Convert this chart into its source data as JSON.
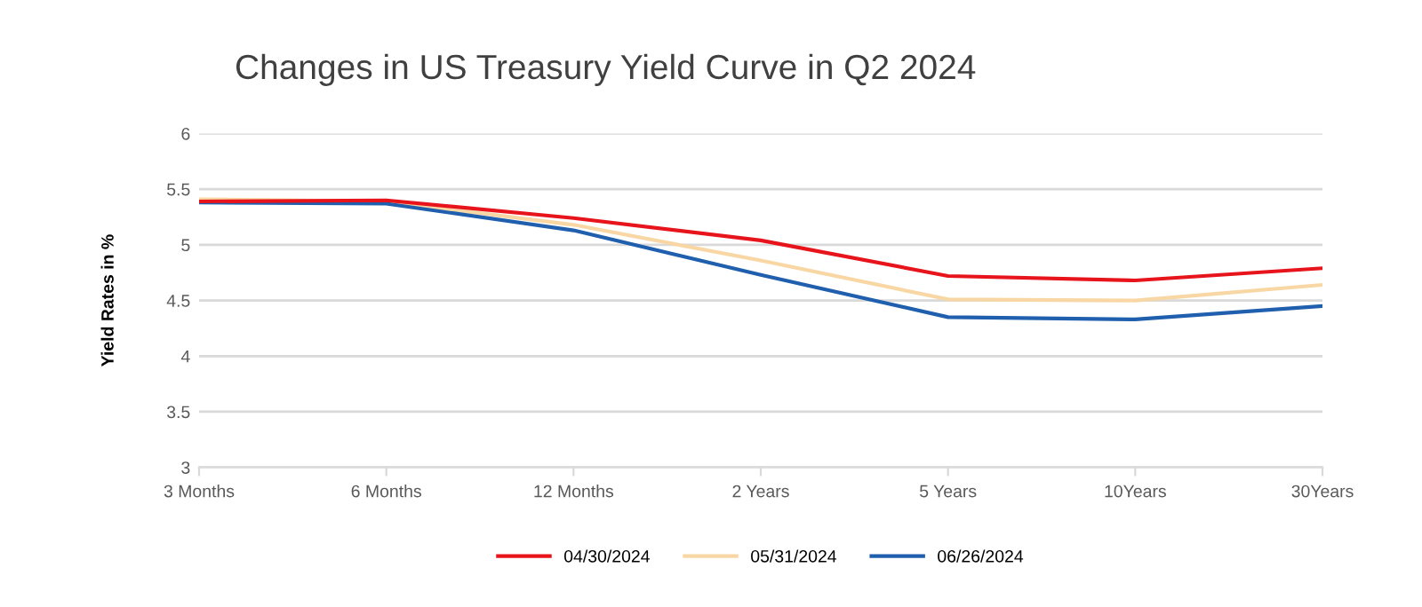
{
  "chart_data": {
    "type": "line",
    "title": "Changes in US Treasury Yield Curve in Q2 2024",
    "ylabel": "Yield Rates in %",
    "categories": [
      "3 Months",
      "6 Months",
      "12 Months",
      "2 Years",
      "5 Years",
      "10Years",
      "30Years"
    ],
    "series": [
      {
        "name": "04/30/2024",
        "color": "#e8141c",
        "values": [
          5.39,
          5.4,
          5.24,
          5.04,
          4.72,
          4.68,
          4.79
        ]
      },
      {
        "name": "05/31/2024",
        "color": "#f8d7a4",
        "values": [
          5.41,
          5.39,
          5.18,
          4.86,
          4.51,
          4.5,
          4.64
        ]
      },
      {
        "name": "06/26/2024",
        "color": "#1f5fae",
        "values": [
          5.38,
          5.37,
          5.13,
          4.73,
          4.35,
          4.33,
          4.45
        ]
      }
    ],
    "ylim": [
      3,
      6
    ],
    "yticks": [
      3,
      3.5,
      4,
      4.5,
      5,
      5.5,
      6
    ],
    "grid": "y",
    "legend": "bottom",
    "marker": "none",
    "line_style": "solid"
  }
}
